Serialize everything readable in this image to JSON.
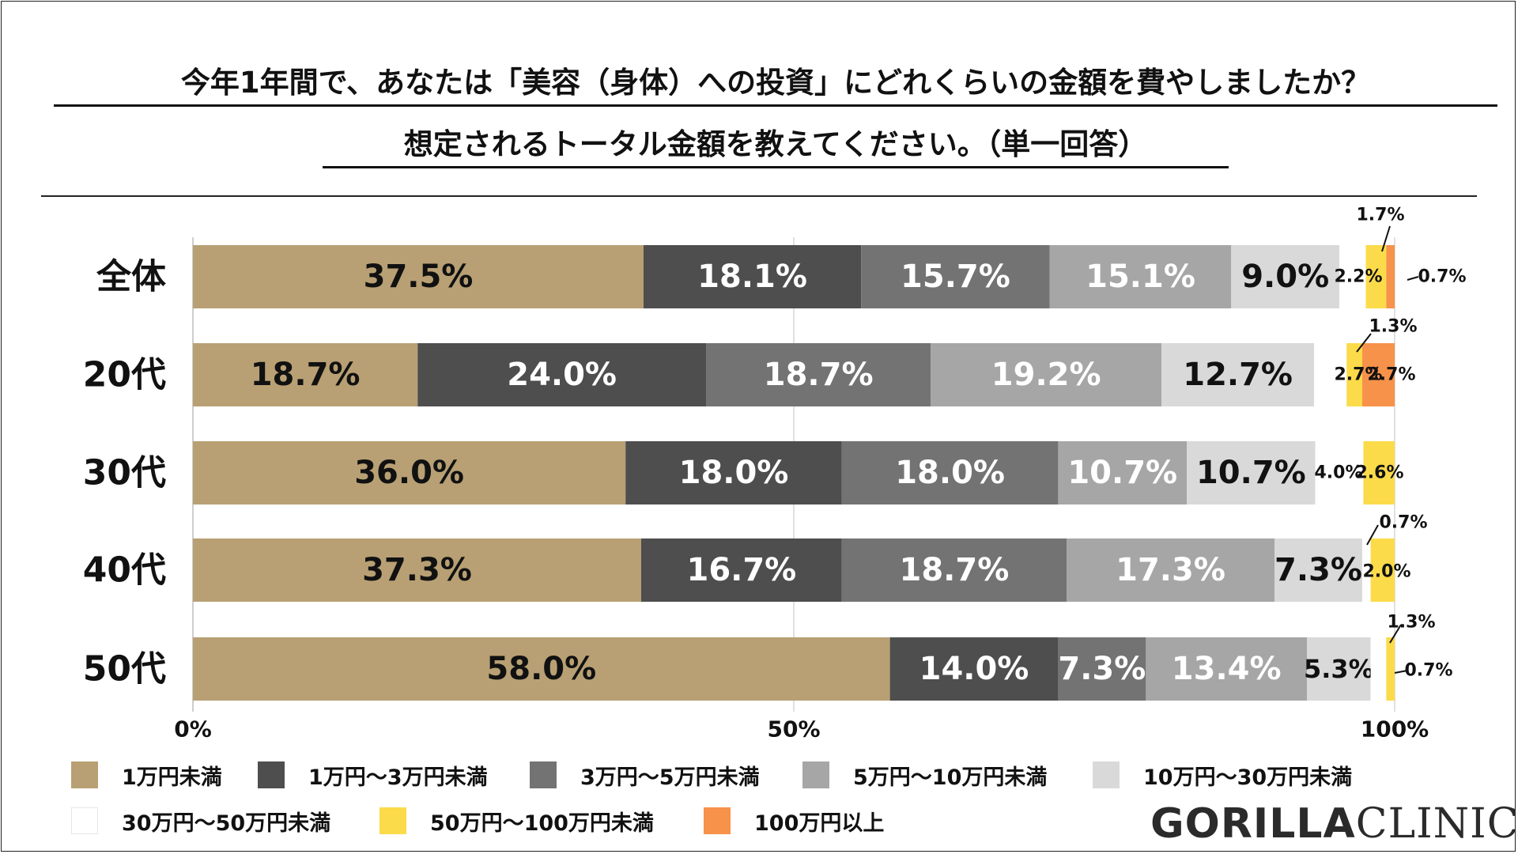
{
  "title": {
    "line1": "今年1年間で、あなたは「美容（身体）への投資」にどれくらいの金額を費やしましたか？",
    "line2": "想定されるトータル金額を教えてください。（単一回答）"
  },
  "colors": {
    "c1": "#b8a074",
    "c2": "#4e4e4e",
    "c3": "#737373",
    "c4": "#a6a6a6",
    "c5": "#d9d9d9",
    "c6": "#ffffff",
    "c7": "#fbdb4a",
    "c8": "#f7924a"
  },
  "chart_data": {
    "type": "bar",
    "orientation": "horizontal",
    "stacked": true,
    "categories": [
      "全体",
      "20代",
      "30代",
      "40代",
      "50代"
    ],
    "series": [
      {
        "name": "1万円未満",
        "values": [
          37.5,
          18.7,
          36.0,
          37.3,
          58.0
        ],
        "labels": [
          "37.5%",
          "18.7%",
          "36.0%",
          "37.3%",
          "58.0%"
        ]
      },
      {
        "name": "1万円〜3万円未満",
        "values": [
          18.1,
          24.0,
          18.0,
          16.7,
          14.0
        ],
        "labels": [
          "18.1%",
          "24.0%",
          "18.0%",
          "16.7%",
          "14.0%"
        ]
      },
      {
        "name": "3万円〜5万円未満",
        "values": [
          15.7,
          18.7,
          18.0,
          18.7,
          7.3
        ],
        "labels": [
          "15.7%",
          "18.7%",
          "18.0%",
          "18.7%",
          "7.3%"
        ]
      },
      {
        "name": "5万円〜10万円未満",
        "values": [
          15.1,
          19.2,
          10.7,
          17.3,
          13.4
        ],
        "labels": [
          "15.1%",
          "19.2%",
          "10.7%",
          "17.3%",
          "13.4%"
        ]
      },
      {
        "name": "10万円〜30万円未満",
        "values": [
          9.0,
          12.7,
          10.7,
          7.3,
          5.3
        ],
        "labels": [
          "9.0%",
          "12.7%",
          "10.7%",
          "7.3%",
          "5.3%"
        ]
      },
      {
        "name": "30万円〜50万円未満",
        "values": [
          2.2,
          2.7,
          4.0,
          0.7,
          1.3
        ],
        "labels": [
          "2.2%",
          "2.7%",
          "4.0%",
          "0.7%",
          "1.3%"
        ]
      },
      {
        "name": "50万円〜100万円未満",
        "values": [
          1.7,
          1.3,
          2.6,
          2.0,
          0.7
        ],
        "labels": [
          "1.7%",
          "1.3%",
          "2.6%",
          "2.0%",
          "0.7%"
        ]
      },
      {
        "name": "100万円以上",
        "values": [
          0.7,
          2.7,
          0.0,
          0.0,
          0.0
        ],
        "labels": [
          "0.7%",
          "2.7%",
          "",
          "",
          ""
        ]
      }
    ],
    "xlim": [
      0,
      100
    ],
    "xticks": [
      "0%",
      "50%",
      "100%"
    ],
    "gridlines": true,
    "legend_position": "bottom"
  },
  "brand": {
    "bold": "GORILLA",
    "light": "CLINIC"
  }
}
